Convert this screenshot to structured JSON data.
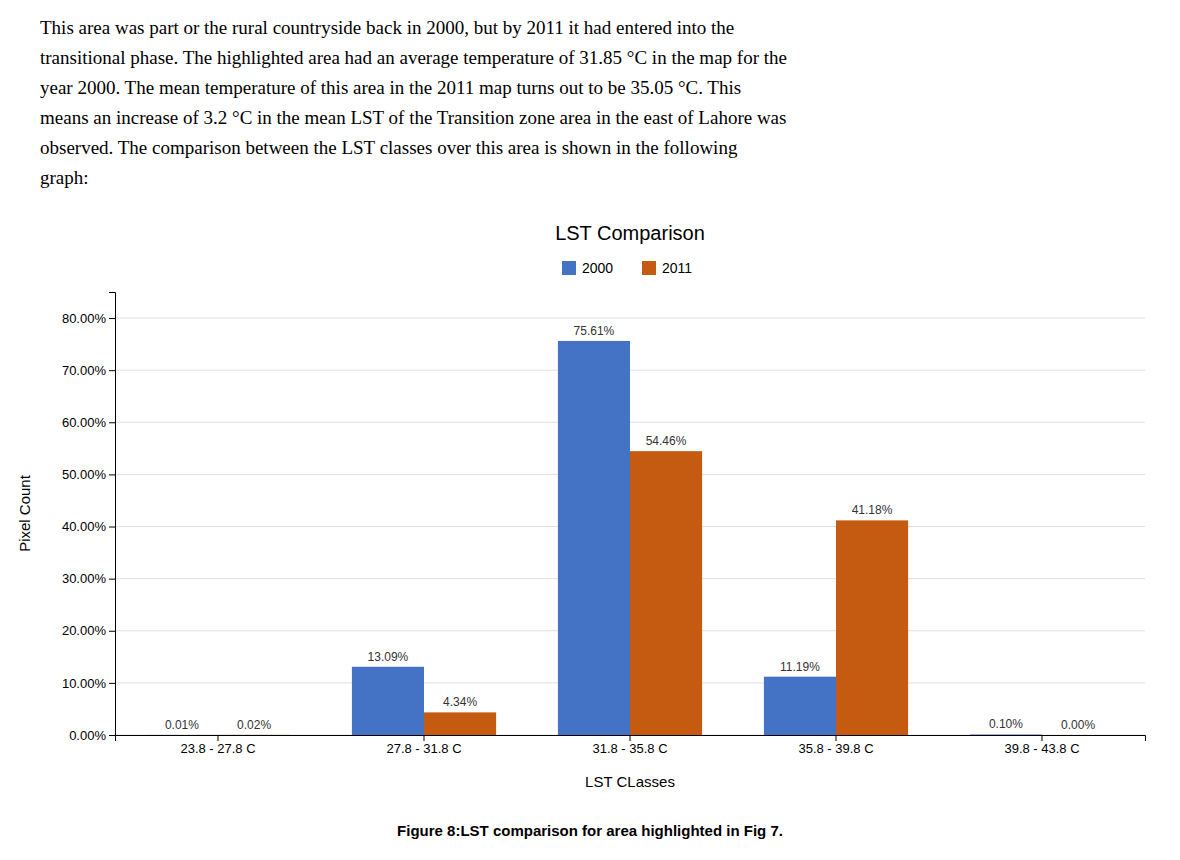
{
  "chart_data": {
    "type": "bar",
    "text": [
      "This area was part or the rural countryside back in 2000, but by 2011 it had entered into the",
      "transitional phase. The highlighted area had an average temperature of 31.85 °C in the map for the",
      "year 2000. The mean temperature of this area in the 2011 map turns out to be 35.05 °C. This",
      "means an increase of 3.2 °C in the mean LST of the Transition zone area in the east of Lahore was",
      "observed. The comparison between the LST classes over this area is shown in the following",
      "graph:"
    ],
    "title": "LST Comparison",
    "x_label": "LST CLasses",
    "y_label": "Pixel Count",
    "caption": "Figure 8:LST comparison for area highlighted in Fig 7.",
    "categories": [
      "23.8 - 27.8 C",
      "27.8 - 31.8 C",
      "31.8 - 35.8 C",
      "35.8 - 39.8 C",
      "39.8 - 43.8 C"
    ],
    "series": [
      {
        "name": "2000",
        "color": "#4472C4",
        "values": [
          0.01,
          13.09,
          75.61,
          11.19,
          0.1
        ],
        "value_labels": [
          "0.01%",
          "13.09%",
          "75.61%",
          "11.19%",
          "0.10%"
        ]
      },
      {
        "name": "2011",
        "color": "#C55A11",
        "values": [
          0.02,
          4.34,
          54.46,
          41.18,
          0.0
        ],
        "value_labels": [
          "0.02%",
          "4.34%",
          "54.46%",
          "41.18%",
          "0.00%"
        ]
      }
    ],
    "ylim": [
      0,
      85
    ],
    "yticks": [
      {
        "value": 0,
        "label": "0.00%"
      },
      {
        "value": 10,
        "label": "10.00%"
      },
      {
        "value": 20,
        "label": "20.00%"
      },
      {
        "value": 30,
        "label": "30.00%"
      },
      {
        "value": 40,
        "label": "40.00%"
      },
      {
        "value": 50,
        "label": "50.00%"
      },
      {
        "value": 60,
        "label": "60.00%"
      },
      {
        "value": 70,
        "label": "70.00%"
      },
      {
        "value": 80,
        "label": "80.00%"
      }
    ],
    "grid": true,
    "legend": "top",
    "data_labels": true
  }
}
